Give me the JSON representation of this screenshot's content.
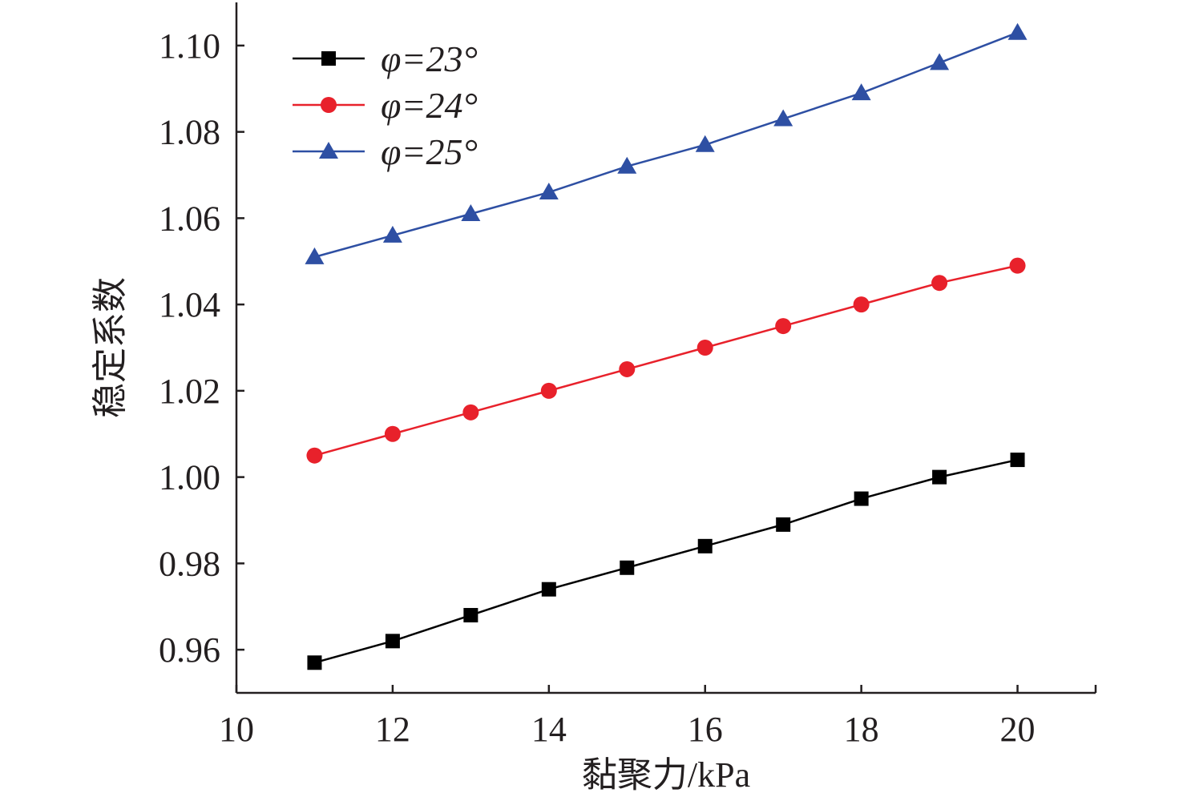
{
  "chart_data": {
    "type": "line",
    "title": "",
    "xlabel": "黏聚力/kPa",
    "ylabel": "稳定系数",
    "xlim": [
      10,
      21
    ],
    "ylim": [
      0.95,
      1.11
    ],
    "xticks": [
      10,
      12,
      14,
      16,
      18,
      20
    ],
    "xtick_labels": [
      "10",
      "12",
      "14",
      "16",
      "18",
      "20"
    ],
    "yticks": [
      0.96,
      0.98,
      1.0,
      1.02,
      1.04,
      1.06,
      1.08,
      1.1
    ],
    "ytick_labels": [
      "0.96",
      "0.98",
      "1.00",
      "1.02",
      "1.04",
      "1.06",
      "1.08",
      "1.10"
    ],
    "grid": false,
    "legend_position": "top-left",
    "x": [
      11,
      12,
      13,
      14,
      15,
      16,
      17,
      18,
      19,
      20
    ],
    "series": [
      {
        "name": "φ=23°",
        "color": "#000000",
        "marker": "square",
        "values": [
          0.957,
          0.962,
          0.968,
          0.974,
          0.979,
          0.984,
          0.989,
          0.995,
          1.0,
          1.004
        ]
      },
      {
        "name": "φ=24°",
        "color": "#e8212b",
        "marker": "circle",
        "values": [
          1.005,
          1.01,
          1.015,
          1.02,
          1.025,
          1.03,
          1.035,
          1.04,
          1.045,
          1.049
        ]
      },
      {
        "name": "φ=25°",
        "color": "#2e4fa3",
        "marker": "triangle",
        "values": [
          1.051,
          1.056,
          1.061,
          1.066,
          1.072,
          1.077,
          1.083,
          1.089,
          1.096,
          1.103
        ]
      }
    ]
  }
}
